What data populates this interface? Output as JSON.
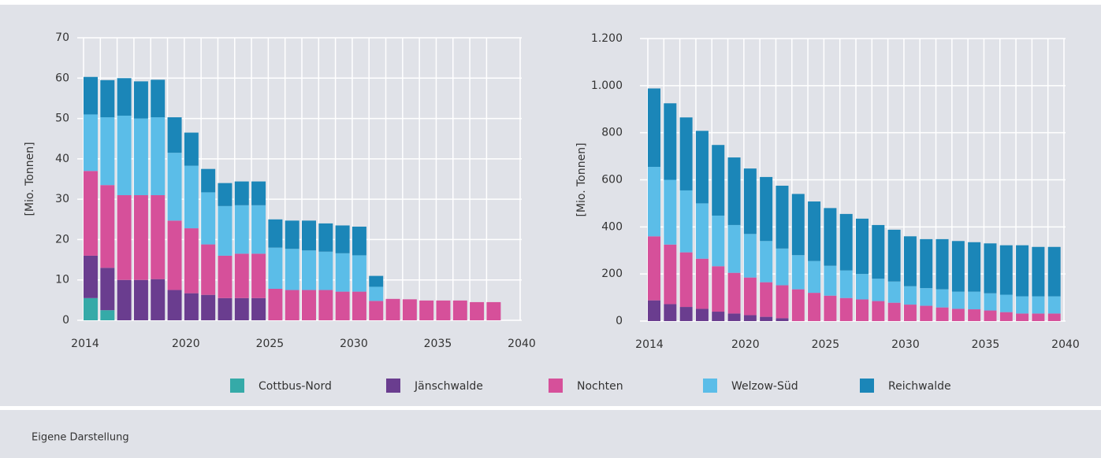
{
  "legend": [
    {
      "name": "Cottbus-Nord",
      "color": "#35aaa8"
    },
    {
      "name": "Jänschwalde",
      "color": "#6a3d8f"
    },
    {
      "name": "Nochten",
      "color": "#d6509a"
    },
    {
      "name": "Welzow-Süd",
      "color": "#5bbde8"
    },
    {
      "name": "Reichwalde",
      "color": "#1b86b8"
    }
  ],
  "chart_data": [
    {
      "type": "bar",
      "stacked": true,
      "y_label": "[Mio. Tonnen]",
      "x": [
        2014,
        2015,
        2016,
        2017,
        2018,
        2019,
        2020,
        2021,
        2022,
        2023,
        2024,
        2025,
        2026,
        2027,
        2028,
        2029,
        2030,
        2031,
        2032,
        2033,
        2034,
        2035,
        2036,
        2037,
        2038
      ],
      "xlim": [
        2014,
        2040
      ],
      "xticks": [
        2014,
        2020,
        2025,
        2030,
        2035,
        2040
      ],
      "ylim": [
        0,
        70
      ],
      "yticks": [
        0,
        10,
        20,
        30,
        40,
        50,
        60,
        70
      ],
      "grid": true,
      "series": [
        {
          "values": [
            5.5,
            2.5,
            null,
            null,
            null,
            null,
            null,
            null,
            null,
            null,
            null,
            null,
            null,
            null,
            null,
            null,
            null,
            null,
            null,
            null,
            null,
            null,
            null,
            null,
            null
          ]
        },
        {
          "values": [
            10.5,
            10.5,
            10,
            10,
            10.2,
            7.5,
            6.7,
            6.3,
            5.5,
            5.5,
            5.5,
            null,
            null,
            null,
            null,
            null,
            null,
            null,
            null,
            null,
            null,
            null,
            null,
            null,
            null
          ]
        },
        {
          "values": [
            21,
            20.5,
            21,
            21,
            20.8,
            17.2,
            16.1,
            12.5,
            10.5,
            11,
            11,
            7.8,
            7.5,
            7.5,
            7.5,
            7.1,
            7.1,
            4.8,
            5.3,
            5.2,
            4.9,
            4.9,
            4.9,
            4.5,
            4.5
          ]
        },
        {
          "values": [
            14,
            16.8,
            19.7,
            19,
            19.3,
            16.8,
            15.5,
            12.9,
            12.3,
            12,
            12,
            10.2,
            10.2,
            9.8,
            9.5,
            9.5,
            9,
            3.5,
            null,
            null,
            null,
            null,
            null,
            null,
            null
          ]
        },
        {
          "values": [
            9.3,
            9.2,
            9.3,
            9.2,
            9.3,
            8.8,
            8.2,
            5.8,
            5.7,
            5.9,
            5.9,
            7,
            7,
            7.4,
            7,
            6.9,
            7.1,
            2.7,
            null,
            null,
            null,
            null,
            null,
            null,
            null
          ]
        }
      ]
    },
    {
      "type": "bar",
      "stacked": true,
      "y_label": "[Mio. Tonnen]",
      "x": [
        2014,
        2015,
        2016,
        2017,
        2018,
        2019,
        2020,
        2021,
        2022,
        2023,
        2024,
        2025,
        2026,
        2027,
        2028,
        2029,
        2030,
        2031,
        2032,
        2033,
        2034,
        2035,
        2036,
        2037,
        2038,
        2039
      ],
      "xlim": [
        2014,
        2040
      ],
      "xticks": [
        2014,
        2020,
        2025,
        2030,
        2035,
        2040
      ],
      "ylim": [
        0,
        1200
      ],
      "yticks": [
        0,
        200,
        400,
        600,
        800,
        {
          "value": 1000,
          "label": "1.000"
        },
        {
          "value": 1200,
          "label": "1.200"
        }
      ],
      "grid": true,
      "series": [
        {
          "values": [
            null,
            null,
            null,
            null,
            null,
            null,
            null,
            null,
            null,
            null,
            null,
            null,
            null,
            null,
            null,
            null,
            null,
            null,
            null,
            null,
            null,
            null,
            null,
            null,
            null,
            null
          ]
        },
        {
          "values": [
            88,
            72,
            60,
            52,
            40,
            32,
            25,
            18,
            12,
            null,
            null,
            null,
            null,
            null,
            null,
            null,
            null,
            null,
            null,
            null,
            null,
            null,
            null,
            null,
            null,
            null
          ]
        },
        {
          "values": [
            272,
            253,
            232,
            213,
            193,
            173,
            160,
            147,
            140,
            135,
            120,
            108,
            98,
            92,
            85,
            78,
            70,
            65,
            58,
            52,
            50,
            45,
            38,
            32,
            32,
            32
          ]
        },
        {
          "values": [
            295,
            275,
            263,
            235,
            215,
            203,
            185,
            175,
            156,
            145,
            135,
            127,
            117,
            108,
            95,
            90,
            78,
            75,
            77,
            73,
            75,
            73,
            74,
            73,
            73,
            73
          ]
        },
        {
          "values": [
            333,
            325,
            310,
            308,
            300,
            287,
            278,
            272,
            267,
            260,
            253,
            245,
            240,
            235,
            228,
            220,
            212,
            208,
            213,
            215,
            210,
            212,
            210,
            217,
            210,
            210
          ]
        }
      ]
    }
  ],
  "footer": "Eigene Darstellung"
}
